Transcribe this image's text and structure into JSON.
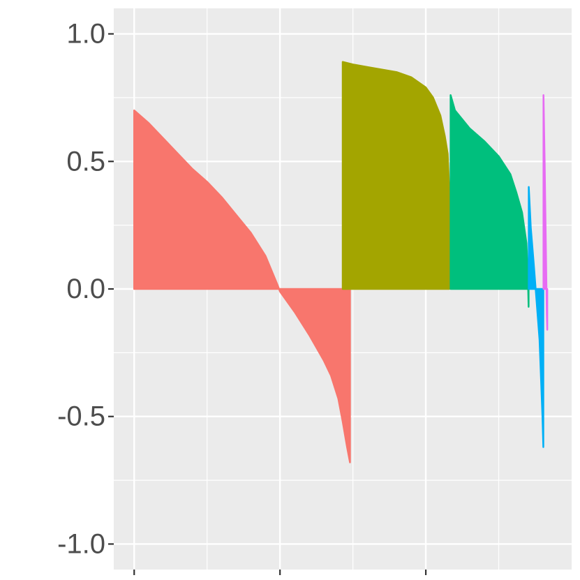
{
  "chart_data": {
    "type": "area",
    "title": "",
    "xlabel": "",
    "ylabel": "",
    "xlim": [
      -14,
      300
    ],
    "ylim": [
      -1.1,
      1.1
    ],
    "y_ticks": [
      {
        "value": 1.0,
        "label": "1.0"
      },
      {
        "value": 0.5,
        "label": "0.5"
      },
      {
        "value": 0.0,
        "label": "0.0"
      },
      {
        "value": -0.5,
        "label": "-0.5"
      },
      {
        "value": -1.0,
        "label": "-1.0"
      }
    ],
    "x_major_breaks": [
      0,
      100,
      200
    ],
    "x_minor_breaks": [
      50,
      150,
      250
    ],
    "grid": true,
    "legend": "none",
    "series": [
      {
        "color": "#F8766D",
        "points": [
          [
            0,
            0.7
          ],
          [
            10,
            0.65
          ],
          [
            20,
            0.59
          ],
          [
            30,
            0.53
          ],
          [
            40,
            0.47
          ],
          [
            50,
            0.42
          ],
          [
            60,
            0.36
          ],
          [
            70,
            0.29
          ],
          [
            80,
            0.22
          ],
          [
            90,
            0.13
          ],
          [
            98,
            0.02
          ],
          [
            100,
            -0.01
          ],
          [
            110,
            -0.09
          ],
          [
            120,
            -0.18
          ],
          [
            130,
            -0.28
          ],
          [
            135,
            -0.34
          ],
          [
            140,
            -0.43
          ],
          [
            143,
            -0.52
          ],
          [
            146,
            -0.62
          ],
          [
            148,
            -0.68
          ]
        ]
      },
      {
        "color": "#A3A500",
        "points": [
          [
            143,
            0.89
          ],
          [
            150,
            0.88
          ],
          [
            160,
            0.87
          ],
          [
            170,
            0.86
          ],
          [
            180,
            0.85
          ],
          [
            190,
            0.83
          ],
          [
            200,
            0.79
          ],
          [
            205,
            0.75
          ],
          [
            210,
            0.68
          ],
          [
            213,
            0.6
          ],
          [
            215,
            0.53
          ],
          [
            216,
            0.4
          ]
        ]
      },
      {
        "color": "#00BF7D",
        "points": [
          [
            217,
            0.76
          ],
          [
            220,
            0.7
          ],
          [
            230,
            0.63
          ],
          [
            240,
            0.58
          ],
          [
            250,
            0.52
          ],
          [
            258,
            0.45
          ],
          [
            262,
            0.38
          ],
          [
            266,
            0.3
          ],
          [
            269,
            0.18
          ],
          [
            270,
            0.05
          ],
          [
            270.5,
            -0.07
          ]
        ]
      },
      {
        "color": "#00B0F6",
        "points": [
          [
            270.6,
            0.4
          ],
          [
            272,
            0.24
          ],
          [
            274,
            0.1
          ],
          [
            276,
            -0.05
          ],
          [
            278,
            -0.2
          ],
          [
            279,
            -0.35
          ],
          [
            280,
            -0.5
          ],
          [
            280.6,
            -0.62
          ]
        ]
      },
      {
        "color": "#E76BF3",
        "points": [
          [
            280.7,
            0.76
          ],
          [
            281.5,
            0.5
          ],
          [
            282,
            0.3
          ],
          [
            282.5,
            0.1
          ],
          [
            283,
            -0.1
          ],
          [
            283.3,
            -0.16
          ]
        ]
      }
    ]
  }
}
